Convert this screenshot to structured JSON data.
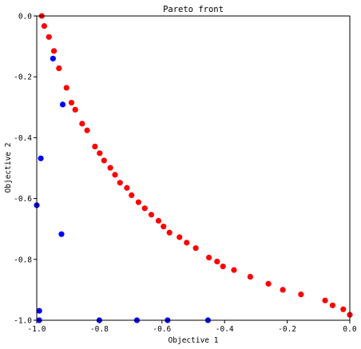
{
  "chart_data": {
    "type": "scatter",
    "title": "Pareto front",
    "xlabel": "Objective 1",
    "ylabel": "Objective 2",
    "xlim": [
      -1.0,
      0.0
    ],
    "ylim": [
      -1.0,
      0.0
    ],
    "grid": false,
    "x_ticks": [
      "-1.0",
      "-0.8",
      "-0.6",
      "-0.4",
      "-0.2",
      "0.0"
    ],
    "y_ticks": [
      "0.0",
      "-0.2",
      "-0.4",
      "-0.6",
      "-0.8",
      "-1.0"
    ],
    "series": [
      {
        "color": "#ff0000",
        "points": [
          [
            -0.984,
            0.0
          ],
          [
            -0.976,
            -0.033
          ],
          [
            -0.961,
            -0.069
          ],
          [
            -0.945,
            -0.115
          ],
          [
            -0.929,
            -0.172
          ],
          [
            -0.905,
            -0.236
          ],
          [
            -0.889,
            -0.285
          ],
          [
            -0.877,
            -0.308
          ],
          [
            -0.855,
            -0.354
          ],
          [
            -0.839,
            -0.376
          ],
          [
            -0.814,
            -0.429
          ],
          [
            -0.799,
            -0.451
          ],
          [
            -0.785,
            -0.475
          ],
          [
            -0.765,
            -0.499
          ],
          [
            -0.75,
            -0.522
          ],
          [
            -0.734,
            -0.548
          ],
          [
            -0.712,
            -0.565
          ],
          [
            -0.697,
            -0.589
          ],
          [
            -0.675,
            -0.612
          ],
          [
            -0.655,
            -0.632
          ],
          [
            -0.634,
            -0.653
          ],
          [
            -0.611,
            -0.673
          ],
          [
            -0.595,
            -0.692
          ],
          [
            -0.576,
            -0.712
          ],
          [
            -0.544,
            -0.727
          ],
          [
            -0.521,
            -0.745
          ],
          [
            -0.492,
            -0.763
          ],
          [
            -0.45,
            -0.794
          ],
          [
            -0.424,
            -0.807
          ],
          [
            -0.405,
            -0.823
          ],
          [
            -0.37,
            -0.835
          ],
          [
            -0.318,
            -0.857
          ],
          [
            -0.26,
            -0.88
          ],
          [
            -0.214,
            -0.9
          ],
          [
            -0.156,
            -0.915
          ],
          [
            -0.079,
            -0.935
          ],
          [
            -0.055,
            -0.951
          ],
          [
            -0.021,
            -0.964
          ],
          [
            0.0,
            -0.982
          ]
        ]
      },
      {
        "color": "#0000ff",
        "points": [
          [
            -0.948,
            -0.14
          ],
          [
            -0.917,
            -0.291
          ],
          [
            -0.987,
            -0.468
          ],
          [
            -1.0,
            -0.622
          ],
          [
            -0.921,
            -0.717
          ],
          [
            -0.992,
            -0.969
          ],
          [
            -0.992,
            -1.0
          ],
          [
            -0.8,
            -1.0
          ],
          [
            -0.68,
            -1.0
          ],
          [
            -0.582,
            -1.0
          ],
          [
            -0.453,
            -1.0
          ]
        ]
      }
    ]
  }
}
